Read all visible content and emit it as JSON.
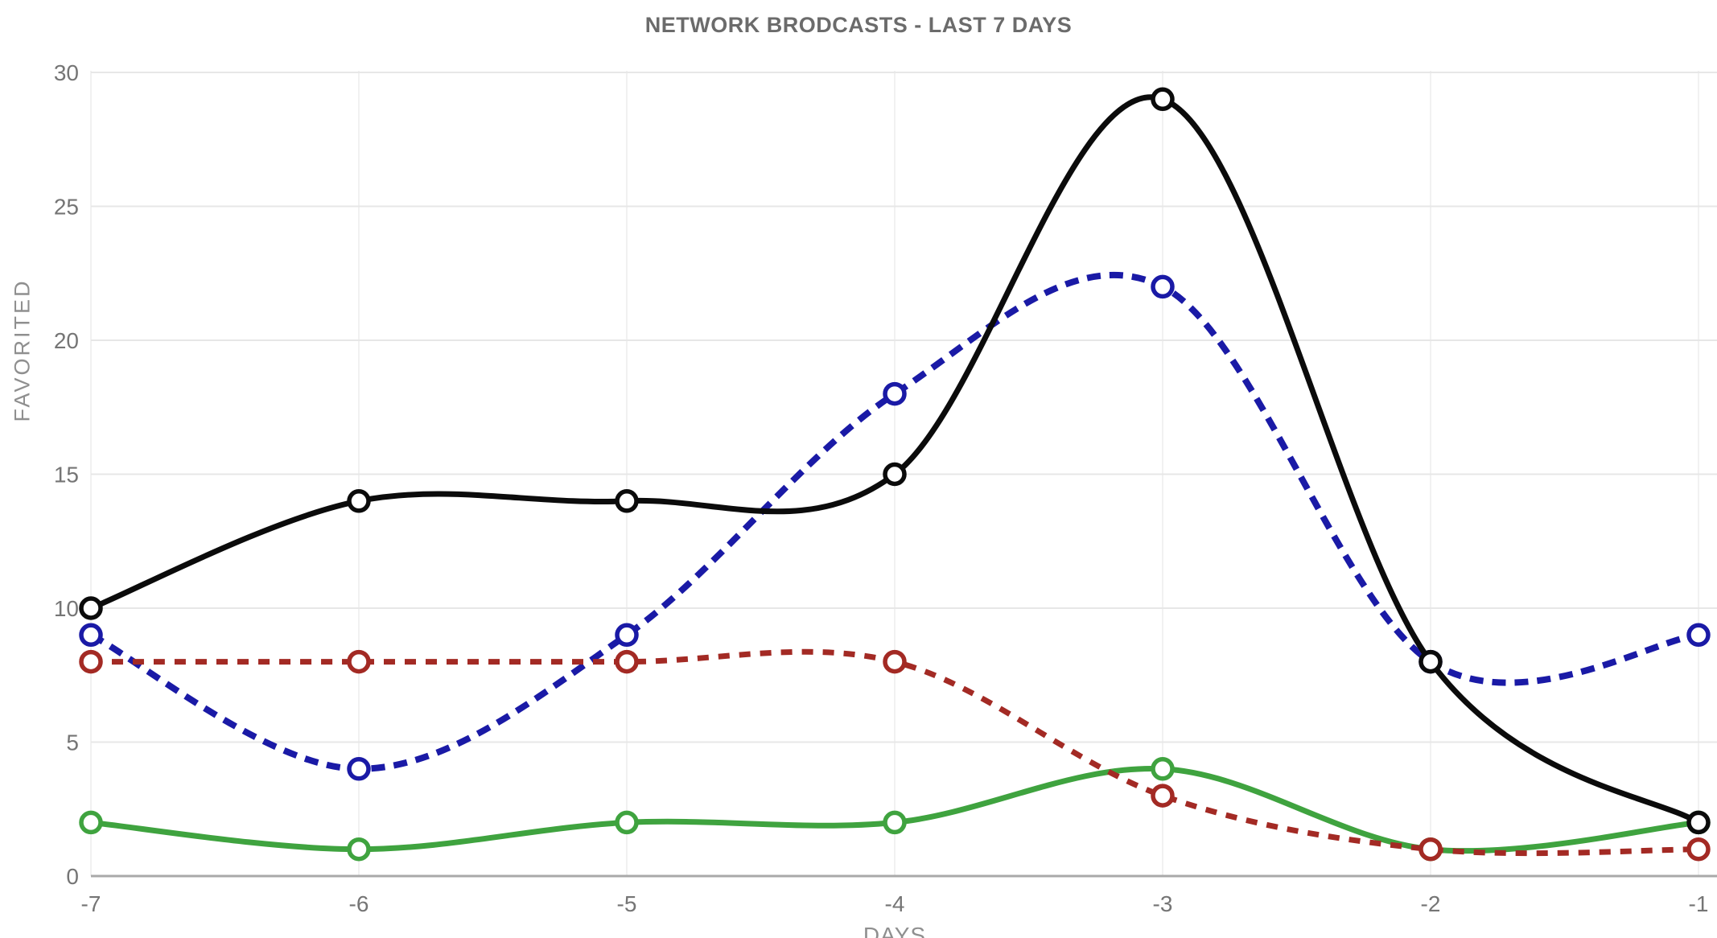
{
  "chart_data": {
    "type": "line",
    "title": "NETWORK BRODCASTS - LAST 7 DAYS",
    "xlabel": "DAYS",
    "ylabel": "FAVORITED",
    "x": [
      -7,
      -6,
      -5,
      -4,
      -3,
      -2,
      -1
    ],
    "xtick_labels": [
      "-7",
      "-6",
      "-5",
      "-4",
      "-3",
      "-2",
      "-1"
    ],
    "yticks": [
      0,
      5,
      10,
      15,
      20,
      25,
      30
    ],
    "ylim": [
      0,
      30
    ],
    "grid": "on",
    "legend": "none",
    "marker": "open-circle",
    "curve": "smooth-spline",
    "series": [
      {
        "name": "blue-dashed",
        "color": "#1a1aa6",
        "style": "dashed",
        "values": [
          9,
          4,
          9,
          18,
          22,
          8,
          9
        ]
      },
      {
        "name": "green-solid",
        "color": "#3fa33f",
        "style": "solid",
        "values": [
          2,
          1,
          2,
          2,
          4,
          1,
          2
        ]
      },
      {
        "name": "red-dashed",
        "color": "#a32a24",
        "style": "dashed",
        "values": [
          8,
          8,
          8,
          8,
          3,
          1,
          1
        ]
      },
      {
        "name": "black-solid",
        "color": "#0b0b0b",
        "style": "solid",
        "values": [
          10,
          14,
          14,
          15,
          29,
          8,
          2
        ]
      }
    ]
  },
  "style": {
    "title_color": "#6b6b6b",
    "tick_color": "#757575",
    "axis_title_color": "#8f8f8f",
    "h_grid_color": "#e7e7e7",
    "v_grid_color": "#f1f1f1",
    "baseline_color": "#a9a9a9",
    "marker_fill": "#ffffff"
  }
}
